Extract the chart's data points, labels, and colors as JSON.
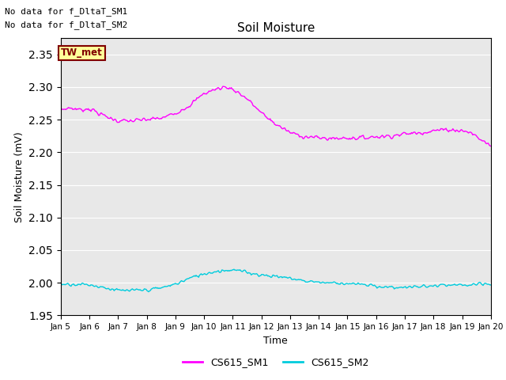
{
  "title": "Soil Moisture",
  "ylabel": "Soil Moisture (mV)",
  "xlabel": "Time",
  "ylim": [
    1.95,
    2.375
  ],
  "yticks": [
    1.95,
    2.0,
    2.05,
    2.1,
    2.15,
    2.2,
    2.25,
    2.3,
    2.35
  ],
  "xtick_labels": [
    "Jan 5",
    "Jan 6",
    "Jan 7",
    "Jan 8",
    "Jan 9",
    "Jan 10",
    "Jan 11",
    "Jan 12",
    "Jan 13",
    "Jan 14",
    "Jan 15",
    "Jan 16",
    "Jan 17",
    "Jan 18",
    "Jan 19",
    "Jan 20"
  ],
  "no_data_text1": "No data for f_DltaT_SM1",
  "no_data_text2": "No data for f_DltaT_SM2",
  "tw_met_label": "TW_met",
  "legend_entries": [
    "CS615_SM1",
    "CS615_SM2"
  ],
  "line1_color": "#ff00ff",
  "line2_color": "#00ccdd",
  "background_color": "#e8e8e8",
  "tw_met_bg": "#ffff99",
  "tw_met_border": "#800000"
}
